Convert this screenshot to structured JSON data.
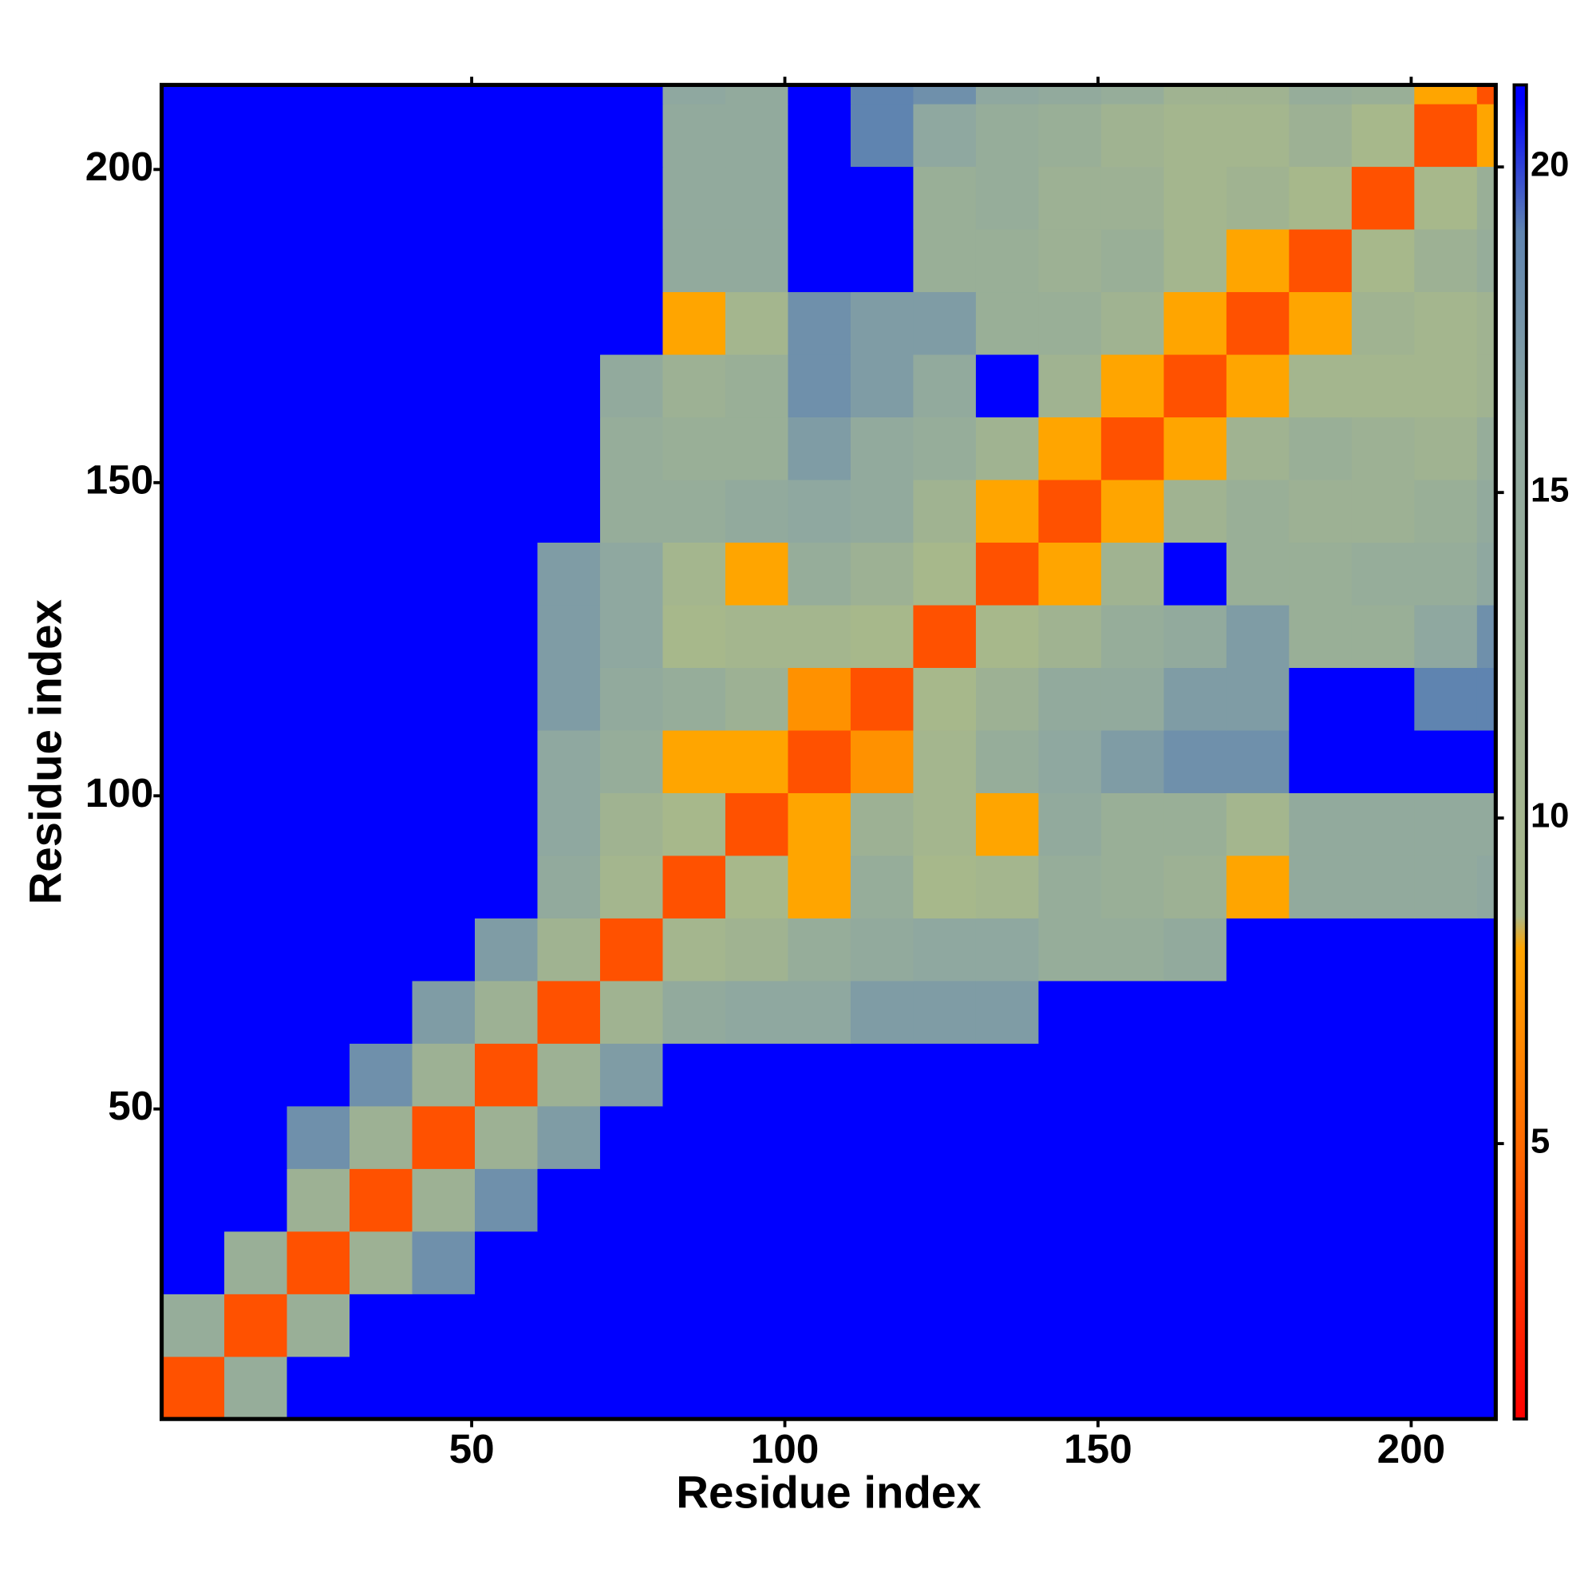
{
  "chart_data": {
    "type": "heatmap",
    "x_label": "Residue index",
    "y_label": "Residue index",
    "x_bins": [
      0.5,
      10.5,
      20.5,
      30.5,
      40.5,
      50.5,
      60.5,
      70.5,
      80.5,
      90.5,
      100.5,
      110.5,
      120.5,
      130.5,
      140.5,
      150.5,
      160.5,
      170.5,
      180.5,
      190.5,
      200.5,
      210.5,
      213.5
    ],
    "y_bins": [
      0.5,
      10.5,
      20.5,
      30.5,
      40.5,
      50.5,
      60.5,
      70.5,
      80.5,
      90.5,
      100.5,
      110.5,
      120.5,
      130.5,
      140.5,
      150.5,
      160.5,
      170.5,
      180.5,
      190.5,
      200.5,
      210.5,
      213.5
    ],
    "xlim": [
      0.5,
      213.5
    ],
    "ylim": [
      0.5,
      213.5
    ],
    "xticks": [
      50,
      100,
      150,
      200
    ],
    "yticks": [
      50,
      100,
      150,
      200
    ],
    "zlim": [
      0.77,
      21.26
    ],
    "zticks": [
      5,
      10,
      15,
      20
    ],
    "colorscale": [
      [
        0.77,
        "#ff0000"
      ],
      [
        5,
        "#ff6a00"
      ],
      [
        8,
        "#ffa500"
      ],
      [
        8.5,
        "#a9b98a"
      ],
      [
        16,
        "#8fa8a0"
      ],
      [
        19,
        "#5f84b0"
      ],
      [
        21,
        "#0000ff"
      ]
    ],
    "values": [
      [
        4,
        14,
        21,
        21,
        21,
        21,
        21,
        21,
        21,
        21,
        21,
        21,
        21,
        21,
        21,
        21,
        21,
        21,
        21,
        21,
        21,
        21
      ],
      [
        14,
        4,
        13,
        21,
        21,
        21,
        21,
        21,
        21,
        21,
        21,
        21,
        21,
        21,
        21,
        21,
        21,
        21,
        21,
        21,
        21,
        21
      ],
      [
        21,
        13,
        4,
        12,
        18,
        21,
        21,
        21,
        21,
        21,
        21,
        21,
        21,
        21,
        21,
        21,
        21,
        21,
        21,
        21,
        21,
        21
      ],
      [
        21,
        21,
        12,
        4,
        12,
        18,
        21,
        21,
        21,
        21,
        21,
        21,
        21,
        21,
        21,
        21,
        21,
        21,
        21,
        21,
        21,
        21
      ],
      [
        21,
        21,
        18,
        12,
        4,
        12,
        17,
        21,
        21,
        21,
        21,
        21,
        21,
        21,
        21,
        21,
        21,
        21,
        21,
        21,
        21,
        21
      ],
      [
        21,
        21,
        21,
        18,
        12,
        4,
        12,
        17,
        21,
        21,
        21,
        21,
        21,
        21,
        21,
        21,
        21,
        21,
        21,
        21,
        21,
        21
      ],
      [
        21,
        21,
        21,
        21,
        17,
        12,
        4,
        11,
        15,
        16,
        16,
        17,
        17,
        17,
        21,
        21,
        21,
        21,
        21,
        21,
        21,
        21
      ],
      [
        21,
        21,
        21,
        21,
        21,
        17,
        11,
        4,
        10,
        11,
        14,
        15,
        16,
        16,
        14,
        14,
        15,
        21,
        21,
        21,
        21,
        21
      ],
      [
        21,
        21,
        21,
        21,
        21,
        21,
        15,
        10,
        4,
        9,
        8,
        14,
        9,
        10,
        14,
        13,
        12,
        8,
        15,
        15,
        15,
        16
      ],
      [
        21,
        21,
        21,
        21,
        21,
        21,
        16,
        11,
        9,
        4,
        8,
        12,
        10,
        8,
        15,
        13,
        13,
        10,
        15,
        15,
        15,
        15
      ],
      [
        21,
        21,
        21,
        21,
        21,
        21,
        16,
        14,
        8,
        8,
        4,
        7,
        10,
        14,
        16,
        17,
        18,
        18,
        21,
        21,
        21,
        21
      ],
      [
        21,
        21,
        21,
        21,
        21,
        21,
        17,
        15,
        14,
        12,
        7,
        4,
        9,
        12,
        15,
        15,
        17,
        17,
        21,
        21,
        19,
        19
      ],
      [
        21,
        21,
        21,
        21,
        21,
        21,
        17,
        16,
        9,
        10,
        10,
        9,
        4,
        9,
        11,
        14,
        15,
        17,
        13,
        13,
        16,
        18
      ],
      [
        21,
        21,
        21,
        21,
        21,
        21,
        17,
        16,
        10,
        8,
        14,
        12,
        9,
        4,
        8,
        11,
        21,
        13,
        13,
        14,
        14,
        16
      ],
      [
        21,
        21,
        21,
        21,
        21,
        21,
        21,
        14,
        14,
        15,
        16,
        15,
        11,
        8,
        4,
        8,
        11,
        13,
        12,
        12,
        13,
        15
      ],
      [
        21,
        21,
        21,
        21,
        21,
        21,
        21,
        14,
        13,
        13,
        17,
        15,
        14,
        11,
        8,
        4,
        8,
        11,
        13,
        12,
        11,
        14
      ],
      [
        21,
        21,
        21,
        21,
        21,
        21,
        21,
        15,
        12,
        13,
        18,
        17,
        15,
        21,
        11,
        8,
        4,
        8,
        10,
        10,
        10,
        11
      ],
      [
        21,
        21,
        21,
        21,
        21,
        21,
        21,
        21,
        8,
        10,
        18,
        17,
        17,
        13,
        13,
        11,
        8,
        4,
        8,
        11,
        10,
        11
      ],
      [
        21,
        21,
        21,
        21,
        21,
        21,
        21,
        21,
        15,
        15,
        21,
        21,
        13,
        13,
        12,
        13,
        10,
        8,
        4,
        9,
        12,
        14
      ],
      [
        21,
        21,
        21,
        21,
        21,
        21,
        21,
        21,
        15,
        15,
        21,
        21,
        13,
        14,
        12,
        12,
        10,
        11,
        9,
        4,
        9,
        13
      ],
      [
        21,
        21,
        21,
        21,
        21,
        21,
        21,
        21,
        15,
        15,
        21,
        19,
        16,
        14,
        13,
        11,
        10,
        10,
        12,
        9,
        4,
        8
      ],
      [
        21,
        21,
        21,
        21,
        21,
        21,
        21,
        21,
        16,
        15,
        21,
        19,
        18,
        16,
        15,
        14,
        11,
        11,
        14,
        13,
        8,
        4
      ]
    ]
  }
}
